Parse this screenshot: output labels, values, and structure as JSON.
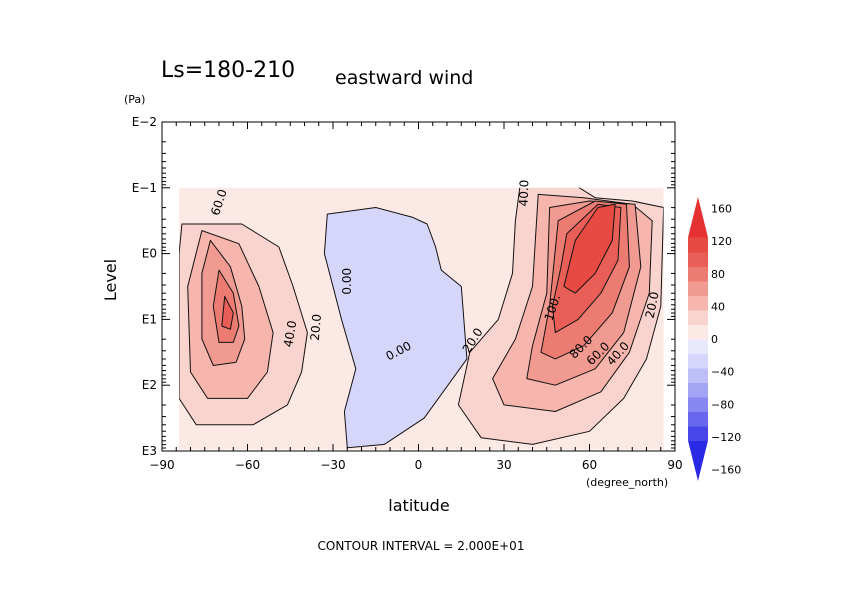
{
  "chart_data": {
    "type": "heatmap",
    "subtype": "filled-contour",
    "title_left": "Ls=180-210",
    "title_right": "eastward wind",
    "xlabel": "latitude",
    "x_unit": "(degree_north)",
    "ylabel": "Level",
    "y_unit": "(Pa)",
    "x_ticks": [
      "−90",
      "−60",
      "−30",
      "0",
      "30",
      "60",
      "90"
    ],
    "x_tick_values": [
      -90,
      -60,
      -30,
      0,
      30,
      60,
      90
    ],
    "xlim": [
      -90,
      90
    ],
    "y_ticks": [
      "E−2",
      "E−1",
      "E0",
      "E1",
      "E2",
      "E3"
    ],
    "y_tick_exponents": [
      -2,
      -1,
      0,
      1,
      2,
      3
    ],
    "y_scale": "log",
    "y_inverted": true,
    "ylim_exponent": [
      -2,
      3
    ],
    "footer": "CONTOUR INTERVAL = 2.000E+01",
    "colorbar": {
      "labels": [
        "160",
        "120",
        "80",
        "40",
        "0",
        "−40",
        "−80",
        "−120",
        "−160"
      ],
      "levels": [
        -160,
        -140,
        -120,
        -100,
        -80,
        -60,
        -40,
        -20,
        0,
        20,
        40,
        60,
        80,
        100,
        120,
        140,
        160
      ],
      "colors": [
        "#2a2ae6",
        "#4848ea",
        "#6868ee",
        "#8888f2",
        "#a4a4f5",
        "#bebef8",
        "#d6d6fb",
        "#e8e8fc",
        "#fce9e6",
        "#f9d4cf",
        "#f6b6ae",
        "#f19a91",
        "#ec7b72",
        "#e95f57",
        "#e64a42",
        "#e53131"
      ]
    },
    "contour_labels": [
      {
        "text": "60.0",
        "lat": -70,
        "lev": -0.78,
        "rot": -72
      },
      {
        "text": "40.0",
        "lat": -45,
        "lev": 1.22,
        "rot": -80
      },
      {
        "text": "20.0",
        "lat": -36,
        "lev": 1.12,
        "rot": -85
      },
      {
        "text": "0.00",
        "lat": -25,
        "lev": 0.42,
        "rot": -90
      },
      {
        "text": "0.00",
        "lat": -7,
        "lev": 1.48,
        "rot": -28
      },
      {
        "text": "20.0",
        "lat": 19,
        "lev": 1.32,
        "rot": -58
      },
      {
        "text": "40.0",
        "lat": 37,
        "lev": -0.92,
        "rot": -88
      },
      {
        "text": "100.",
        "lat": 47,
        "lev": 0.82,
        "rot": -72
      },
      {
        "text": "80.0",
        "lat": 57,
        "lev": 1.42,
        "rot": -45
      },
      {
        "text": "60.0",
        "lat": 63,
        "lev": 1.52,
        "rot": -45
      },
      {
        "text": "40.0",
        "lat": 70,
        "lev": 1.52,
        "rot": -48
      },
      {
        "text": "20.0",
        "lat": 82,
        "lev": 0.78,
        "rot": -78
      }
    ],
    "field_regions": [
      {
        "level": -20,
        "polygon": [
          [
            -32,
            -0.6
          ],
          [
            -15,
            -0.7
          ],
          [
            -2,
            -0.55
          ],
          [
            3,
            -0.45
          ],
          [
            6,
            -0.1
          ],
          [
            8,
            0.25
          ],
          [
            15,
            0.5
          ],
          [
            17,
            1.6
          ],
          [
            2,
            2.5
          ],
          [
            -12,
            2.9
          ],
          [
            -25,
            2.95
          ],
          [
            -26,
            2.4
          ],
          [
            -22,
            1.75
          ],
          [
            -27,
            1.0
          ],
          [
            -30,
            0.5
          ],
          [
            -33,
            0
          ]
        ]
      },
      {
        "level": 20,
        "polygon": [
          [
            -83,
            -0.45
          ],
          [
            -62,
            -0.45
          ],
          [
            -49,
            -0.1
          ],
          [
            -44,
            0.5
          ],
          [
            -39,
            1.2
          ],
          [
            -41,
            1.8
          ],
          [
            -46,
            2.3
          ],
          [
            -58,
            2.6
          ],
          [
            -78,
            2.6
          ],
          [
            -84,
            2.2
          ],
          [
            -84,
            0
          ]
        ]
      },
      {
        "level": 40,
        "polygon": [
          [
            -76,
            -0.35
          ],
          [
            -63,
            -0.15
          ],
          [
            -56,
            0.5
          ],
          [
            -51,
            1.2
          ],
          [
            -53,
            1.8
          ],
          [
            -60,
            2.2
          ],
          [
            -74,
            2.2
          ],
          [
            -80,
            1.8
          ],
          [
            -81,
            0.5
          ]
        ]
      },
      {
        "level": 60,
        "polygon": [
          [
            -73,
            -0.2
          ],
          [
            -66,
            0.2
          ],
          [
            -62,
            0.8
          ],
          [
            -61,
            1.3
          ],
          [
            -64,
            1.65
          ],
          [
            -72,
            1.7
          ],
          [
            -76,
            1.3
          ],
          [
            -76,
            0.3
          ]
        ]
      },
      {
        "level": 80,
        "polygon": [
          [
            -70,
            0.25
          ],
          [
            -65,
            0.6
          ],
          [
            -63,
            1.1
          ],
          [
            -65,
            1.35
          ],
          [
            -70,
            1.35
          ],
          [
            -72,
            0.8
          ]
        ]
      },
      {
        "level": 100,
        "polygon": [
          [
            -68,
            0.65
          ],
          [
            -65,
            0.9
          ],
          [
            -66,
            1.15
          ],
          [
            -69,
            1.1
          ]
        ]
      },
      {
        "level": 20,
        "polygon": [
          [
            36,
            -1.15
          ],
          [
            49,
            -1.2
          ],
          [
            62,
            -0.85
          ],
          [
            75,
            -0.8
          ],
          [
            86,
            -0.7
          ],
          [
            85,
            0.8
          ],
          [
            80,
            1.6
          ],
          [
            72,
            2.2
          ],
          [
            60,
            2.7
          ],
          [
            40,
            2.9
          ],
          [
            22,
            2.8
          ],
          [
            14,
            2.3
          ],
          [
            18,
            1.5
          ],
          [
            28,
            1.0
          ],
          [
            33,
            0.3
          ],
          [
            34,
            -0.5
          ]
        ]
      },
      {
        "level": 40,
        "polygon": [
          [
            42,
            -0.9
          ],
          [
            58,
            -0.85
          ],
          [
            75,
            -0.75
          ],
          [
            82,
            -0.5
          ],
          [
            81,
            0.6
          ],
          [
            74,
            1.5
          ],
          [
            64,
            2.1
          ],
          [
            48,
            2.4
          ],
          [
            30,
            2.3
          ],
          [
            26,
            1.9
          ],
          [
            34,
            1.3
          ],
          [
            40,
            0.5
          ]
        ]
      },
      {
        "level": 60,
        "polygon": [
          [
            46,
            -0.7
          ],
          [
            60,
            -0.8
          ],
          [
            76,
            -0.75
          ],
          [
            78,
            0.2
          ],
          [
            72,
            1.2
          ],
          [
            62,
            1.75
          ],
          [
            48,
            2.0
          ],
          [
            38,
            1.9
          ],
          [
            40,
            1.4
          ],
          [
            45,
            0.6
          ]
        ]
      },
      {
        "level": 80,
        "polygon": [
          [
            49,
            -0.5
          ],
          [
            62,
            -0.8
          ],
          [
            73,
            -0.75
          ],
          [
            74,
            0.2
          ],
          [
            68,
            0.9
          ],
          [
            58,
            1.4
          ],
          [
            48,
            1.6
          ],
          [
            43,
            1.5
          ],
          [
            46,
            0.8
          ]
        ]
      },
      {
        "level": 100,
        "polygon": [
          [
            52,
            -0.3
          ],
          [
            63,
            -0.75
          ],
          [
            71,
            -0.7
          ],
          [
            70,
            0.1
          ],
          [
            64,
            0.6
          ],
          [
            56,
            1.0
          ],
          [
            48,
            1.2
          ],
          [
            47,
            0.8
          ],
          [
            50,
            0.2
          ]
        ]
      },
      {
        "level": 120,
        "polygon": [
          [
            55,
            -0.2
          ],
          [
            63,
            -0.7
          ],
          [
            69,
            -0.75
          ],
          [
            68,
            -0.2
          ],
          [
            62,
            0.3
          ],
          [
            55,
            0.6
          ],
          [
            51,
            0.5
          ]
        ]
      }
    ]
  }
}
